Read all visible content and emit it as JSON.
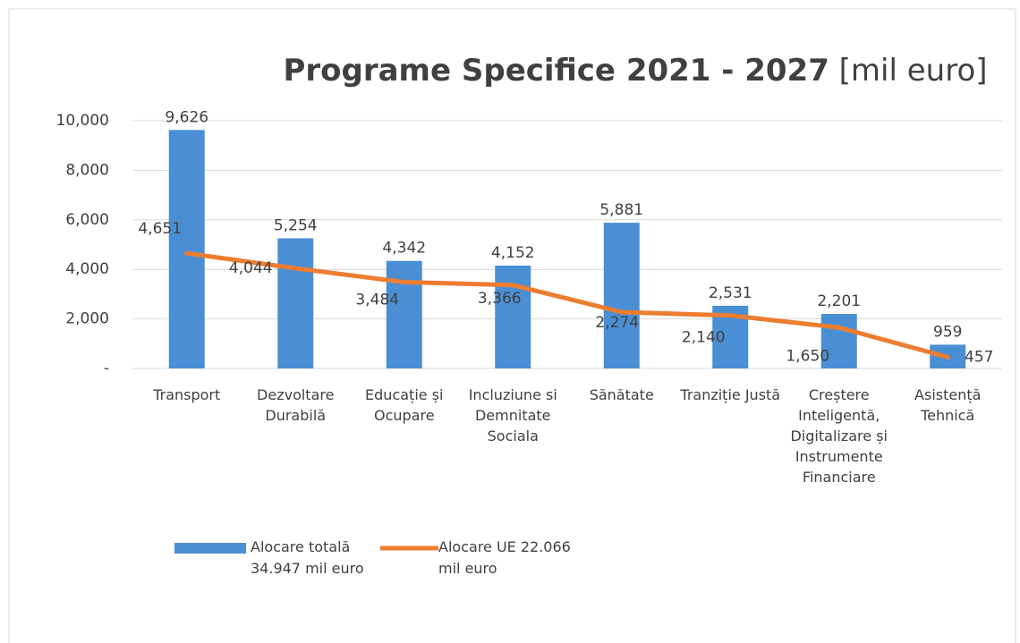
{
  "chart_data": {
    "type": "bar_line",
    "title": "Programe Specifice 2021 - 2027",
    "subtitle": "[mil euro]",
    "categories": [
      "Transport",
      "Dezvoltare Durabilă",
      "Educație și Ocupare",
      "Incluziune si Demnitate Sociala",
      "Sănătate",
      "Tranziție Justă",
      "Creștere Inteligentă, Digitalizare și Instrumente Financiare",
      "Asistență Tehnică"
    ],
    "series": [
      {
        "name": "Alocare totală 34.947 mil euro",
        "type": "bar",
        "color": "#4a8fd4",
        "values": [
          9626,
          5254,
          4342,
          4152,
          5881,
          2531,
          2201,
          959
        ],
        "value_labels": [
          "9,626",
          "5,254",
          "4,342",
          "4,152",
          "5,881",
          "2,531",
          "2,201",
          "959"
        ]
      },
      {
        "name": "Alocare UE 22.066 mil euro",
        "type": "line",
        "color": "#ed7d31",
        "values": [
          4651,
          4044,
          3484,
          3366,
          2274,
          2140,
          1650,
          457
        ],
        "value_labels": [
          "4,651",
          "4,044",
          "3,484",
          "3,366",
          "2,274",
          "2,140",
          "1,650",
          "457"
        ]
      }
    ],
    "ylim": [
      0,
      10000
    ],
    "yticks": [
      {
        "value": 0,
        "label": "-"
      },
      {
        "value": 2000,
        "label": "2,000"
      },
      {
        "value": 4000,
        "label": "4,000"
      },
      {
        "value": 6000,
        "label": "6,000"
      },
      {
        "value": 8000,
        "label": "8,000"
      },
      {
        "value": 10000,
        "label": "10,000"
      }
    ],
    "grid": true
  }
}
